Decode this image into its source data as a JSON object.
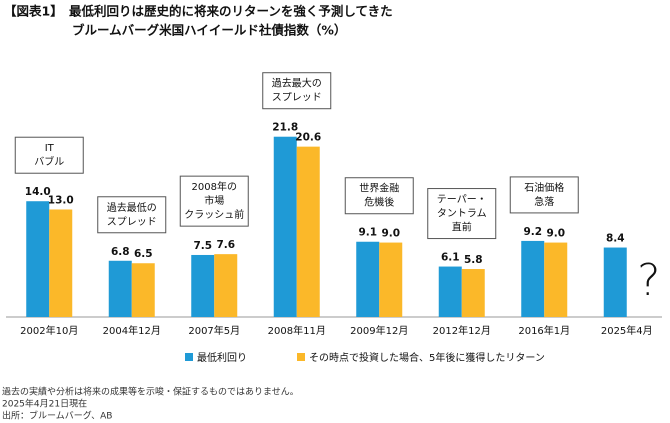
{
  "chart_data": {
    "type": "bar",
    "title": "【図表1】　最低利回りは歴史的に将来のリターンを強く予測してきた",
    "subtitle": "ブルームバーグ米国ハイイールド社債指数（%）",
    "categories": [
      "2002年10月",
      "2004年12月",
      "2007年5月",
      "2008年11月",
      "2009年12月",
      "2012年12月",
      "2016年1月",
      "2025年4月"
    ],
    "series": [
      {
        "name": "最低利回り",
        "color": "#1f9ad6",
        "values": [
          14.0,
          6.8,
          7.5,
          21.8,
          9.1,
          6.1,
          9.2,
          8.4
        ],
        "value_labels": [
          "14.0",
          "6.8",
          "7.5",
          "21.8",
          "9.1",
          "6.1",
          "9.2",
          "8.4"
        ]
      },
      {
        "name": "その時点で投資した場合、5年後に獲得したリターン",
        "color": "#fbb829",
        "values": [
          13.0,
          6.5,
          7.6,
          20.6,
          9.0,
          5.8,
          9.0,
          null
        ],
        "value_labels": [
          "13.0",
          "6.5",
          "7.6",
          "20.6",
          "9.0",
          "5.8",
          "9.0",
          null
        ]
      }
    ],
    "annotations": [
      [
        "IT",
        "バブル"
      ],
      [
        "過去最低の",
        "スプレッド"
      ],
      [
        "2008年の",
        "市場",
        "クラッシュ前"
      ],
      [
        "過去最大の",
        "スプレッド"
      ],
      [
        "世界金融",
        "危機後"
      ],
      [
        "テーパー・",
        "タントラム",
        "直前"
      ],
      [
        "石油価格",
        "急落"
      ],
      null
    ],
    "question_mark": "?",
    "footnotes": [
      "過去の実績や分析は将来の成果等を示唆・保証するものではありません。",
      "2025年4月21日現在",
      "出所：ブルームバーグ、AB"
    ]
  }
}
